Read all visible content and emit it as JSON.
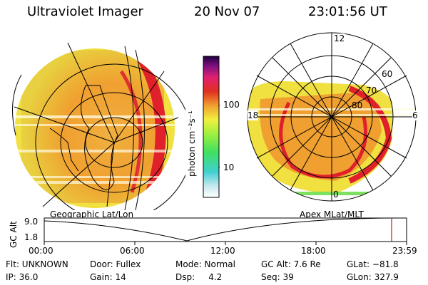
{
  "header": {
    "instrument": "Ultraviolet Imager",
    "date": "20 Nov 07",
    "time": "23:01:56 UT"
  },
  "colorbar": {
    "unit_label": "photon cm⁻²s⁻¹",
    "tick_100": "100",
    "tick_10": "10"
  },
  "geo_panel": {
    "label": "Geographic Lat/Lon"
  },
  "polar_panel": {
    "label": "Apex MLat/MLT",
    "lat_60": "60",
    "lat_70": "70",
    "lat_80": "80",
    "mlt_12": "12",
    "mlt_18": "18",
    "mlt_6": "6",
    "mlt_0": "0"
  },
  "altitude_plot": {
    "ylabel": "GC Alt",
    "y_top": "9.0",
    "y_bottom": "1.8",
    "x_ticks": [
      "00:00",
      "06:00",
      "12:00",
      "18:00",
      "23:59"
    ]
  },
  "status": {
    "flt": "Flt: UNKNOWN",
    "door": "Door: Fullex",
    "mode": "Mode: Normal",
    "gc_alt": "GC Alt: 7.6 Re",
    "glat": "GLat: −81.8",
    "ip": "IP: 36.0",
    "gain": "Gain: 14",
    "dsp": "Dsp:     4.2",
    "seq": "Seq: 39",
    "glon": "GLon: 327.9"
  },
  "colors": {
    "background": "#ffffff",
    "aurora_red": "#e0202a",
    "aurora_orange": "#f0a030",
    "aurora_yellow": "#f0e040",
    "aurora_green": "#7ee060",
    "marker_red": "#d01818"
  }
}
